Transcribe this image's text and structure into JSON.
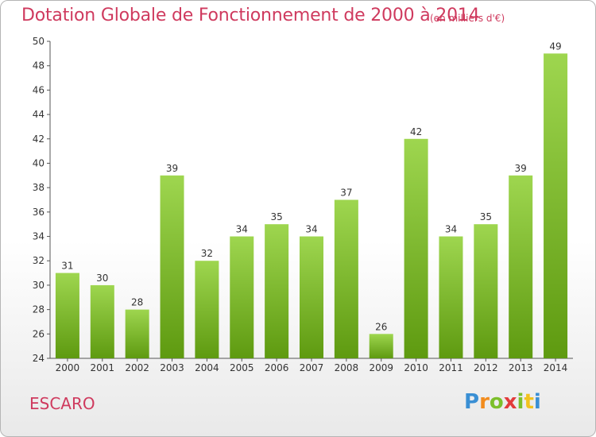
{
  "header": {
    "title": "Dotation Globale de Fonctionnement de 2000 à 2014",
    "unit": "(en milliers d'€)"
  },
  "footer": {
    "commune": "ESCARO",
    "logo": [
      "P",
      "r",
      "o",
      "x",
      "i",
      "t",
      "i"
    ]
  },
  "colors": {
    "accent": "#cf3a5e",
    "bar_light": "#9ed64f",
    "bar_dark": "#5e9a10",
    "logo_letters": [
      "#3a8fd4",
      "#f28c1e",
      "#7cbf2b",
      "#e23b3b",
      "#7cbf2b",
      "#f2c21e",
      "#3a8fd4"
    ]
  },
  "chart_data": {
    "type": "bar",
    "title": "Dotation Globale de Fonctionnement de 2000 à 2014",
    "categories": [
      "2000",
      "2001",
      "2002",
      "2003",
      "2004",
      "2005",
      "2006",
      "2007",
      "2008",
      "2009",
      "2010",
      "2011",
      "2012",
      "2013",
      "2014"
    ],
    "values": [
      31,
      30,
      28,
      39,
      32,
      34,
      35,
      34,
      37,
      26,
      42,
      34,
      35,
      39,
      49
    ],
    "ylim": [
      24,
      50
    ],
    "yticks": [
      24,
      26,
      28,
      30,
      32,
      34,
      36,
      38,
      40,
      42,
      44,
      46,
      48,
      50
    ],
    "grid": false,
    "data_labels": true
  }
}
